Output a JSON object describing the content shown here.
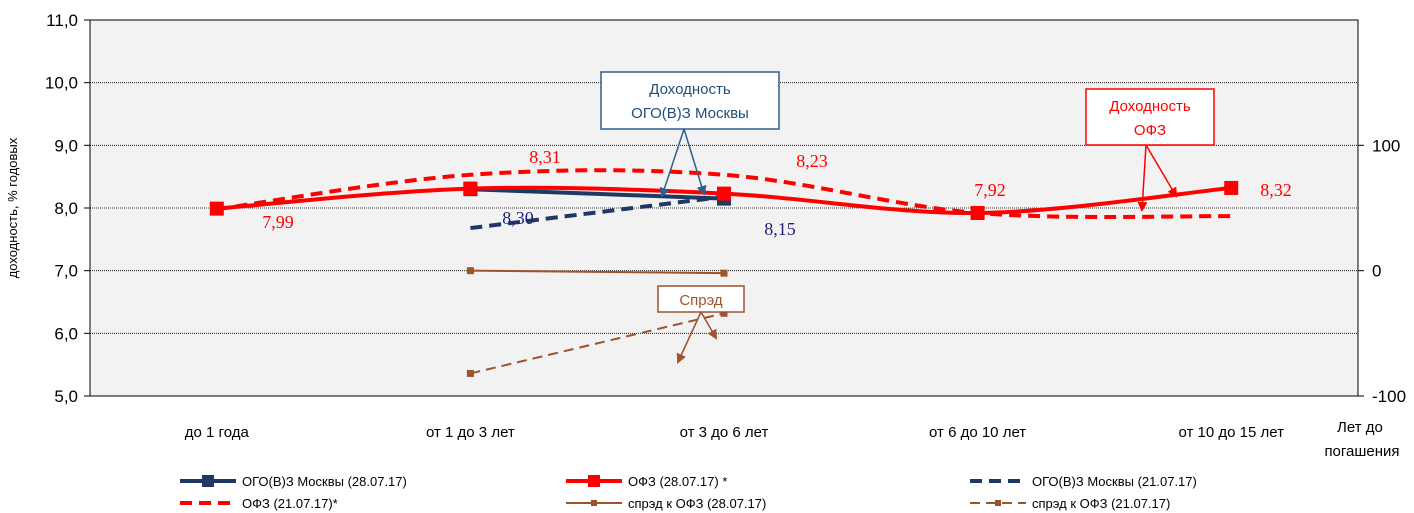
{
  "chart_data": {
    "type": "line",
    "categories": [
      "до 1 года",
      "от 1 до 3 лет",
      "от 3 до 6 лет",
      "от 6 до 10 лет",
      "от 10 до 15 лет"
    ],
    "xlabel": "Лет до погашения",
    "xlabel_lines": [
      "Лет до",
      "погашения"
    ],
    "ylabel": "доходность, % годовых",
    "ylim": [
      5.0,
      11.0
    ],
    "yticks": [
      "5,0",
      "6,0",
      "7,0",
      "8,0",
      "9,0",
      "10,0",
      "11,0"
    ],
    "y2lim": [
      -100,
      200
    ],
    "y2ticks": [
      "-100",
      "0",
      "100"
    ],
    "grid": true,
    "legend_position": "bottom",
    "series": [
      {
        "name": "ОГО(В)З Москвы (28.07.17)",
        "axis": "left",
        "color": "#1f3864",
        "style": "solid-thick",
        "values": [
          null,
          8.3,
          8.15,
          null,
          null
        ]
      },
      {
        "name": "ОФЗ (28.07.17) *",
        "axis": "left",
        "color": "#ff0000",
        "style": "solid-thick",
        "values": [
          7.99,
          8.31,
          8.23,
          7.92,
          8.32
        ]
      },
      {
        "name": "ОГО(В)З Москвы (21.07.17)",
        "axis": "left",
        "color": "#1f3864",
        "style": "dashed-thick",
        "values": [
          null,
          7.68,
          8.18,
          null,
          null
        ]
      },
      {
        "name": "ОФЗ  (21.07.17)*",
        "axis": "left",
        "color": "#ff0000",
        "style": "dashed-thick",
        "values": [
          7.98,
          8.53,
          8.53,
          7.92,
          7.87
        ]
      },
      {
        "name": "спрэд к ОФЗ (28.07.17)",
        "axis": "right",
        "color": "#a0522d",
        "style": "solid-thin",
        "values": [
          null,
          0,
          -2,
          null,
          null
        ]
      },
      {
        "name": "спрэд к ОФЗ (21.07.17)",
        "axis": "right",
        "color": "#a0522d",
        "style": "dashed-thin",
        "values": [
          null,
          -82,
          -34,
          null,
          null
        ]
      }
    ],
    "data_labels": [
      {
        "text": "7,99",
        "color": "#ff0000"
      },
      {
        "text": "8,31",
        "color": "#ff0000"
      },
      {
        "text": "8,23",
        "color": "#ff0000"
      },
      {
        "text": "7,92",
        "color": "#ff0000"
      },
      {
        "text": "8,32",
        "color": "#ff0000"
      },
      {
        "text": "8,30",
        "color": "#1f1f7a"
      },
      {
        "text": "8,15",
        "color": "#1f1f7a"
      }
    ],
    "annotations": [
      {
        "lines": [
          "Доходность",
          "ОГО(В)З Москвы"
        ],
        "color": "#1f4e79",
        "border": "#2e5f8f"
      },
      {
        "lines": [
          "Доходность",
          "ОФЗ"
        ],
        "color": "#ff0000",
        "border": "#ff0000"
      },
      {
        "lines": [
          "Спрэд"
        ],
        "color": "#a0522d",
        "border": "#a0522d"
      }
    ]
  }
}
